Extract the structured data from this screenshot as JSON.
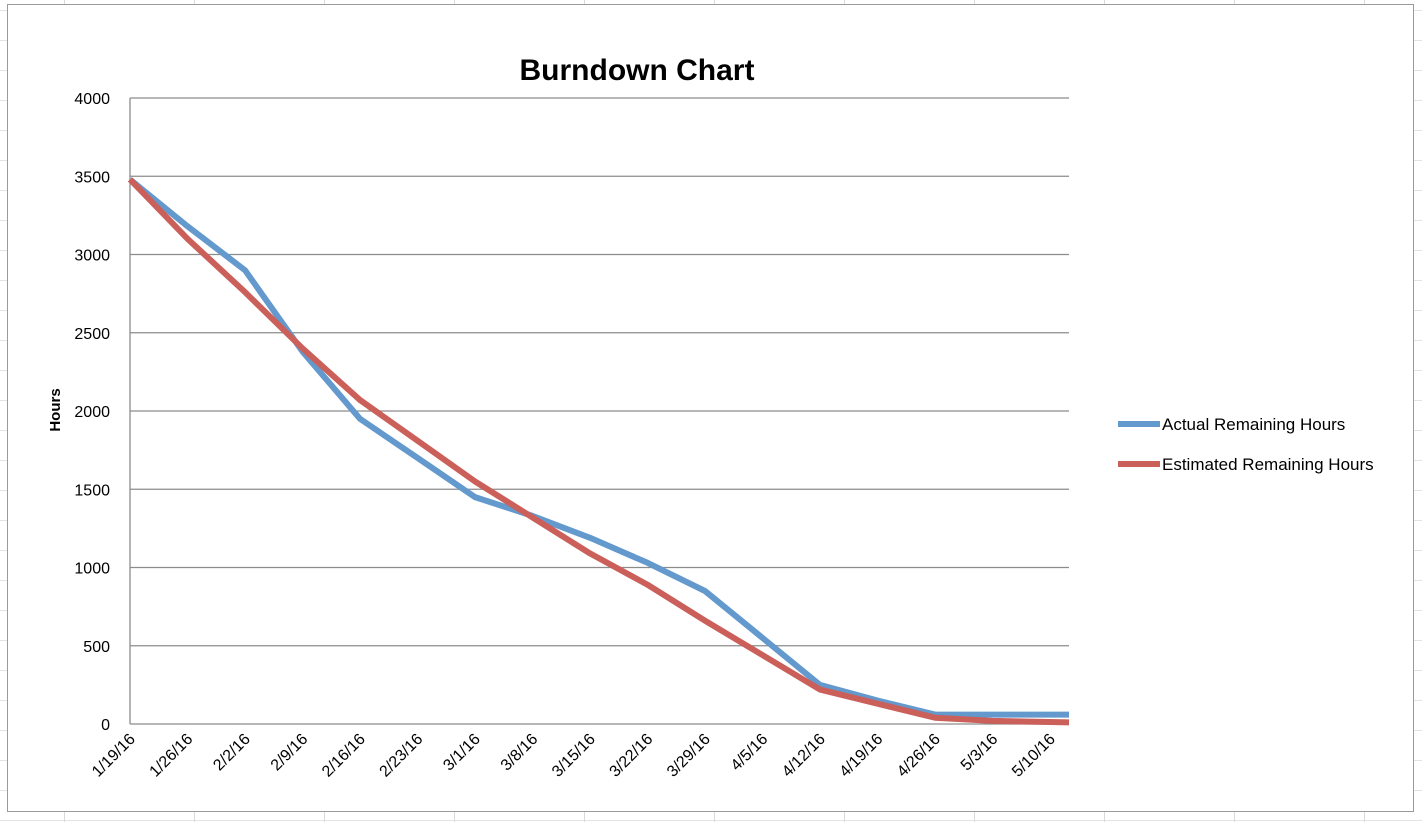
{
  "chart_data": {
    "type": "line",
    "title": "Burndown Chart",
    "xlabel": "",
    "ylabel": "Hours",
    "ylim": [
      0,
      4000
    ],
    "yticks": [
      0,
      500,
      1000,
      1500,
      2000,
      2500,
      3000,
      3500,
      4000
    ],
    "grid": true,
    "legend_position": "right",
    "categories": [
      "1/19/16",
      "1/26/16",
      "2/2/16",
      "2/9/16",
      "2/16/16",
      "2/23/16",
      "3/1/16",
      "3/8/16",
      "3/15/16",
      "3/22/16",
      "3/29/16",
      "4/5/16",
      "4/12/16",
      "4/19/16",
      "4/26/16",
      "5/3/16",
      "5/10/16"
    ],
    "series": [
      {
        "name": "Actual Remaining Hours",
        "color": "#6399cd",
        "values": [
          3480,
          3180,
          2900,
          2380,
          1950,
          1700,
          1450,
          1330,
          1190,
          1030,
          850,
          550,
          250,
          150,
          60,
          60,
          60
        ]
      },
      {
        "name": "Estimated Remaining Hours",
        "color": "#cb5f5a",
        "values": [
          3480,
          3100,
          2760,
          2400,
          2070,
          1810,
          1550,
          1320,
          1090,
          890,
          660,
          440,
          220,
          130,
          40,
          20,
          10
        ]
      }
    ]
  }
}
